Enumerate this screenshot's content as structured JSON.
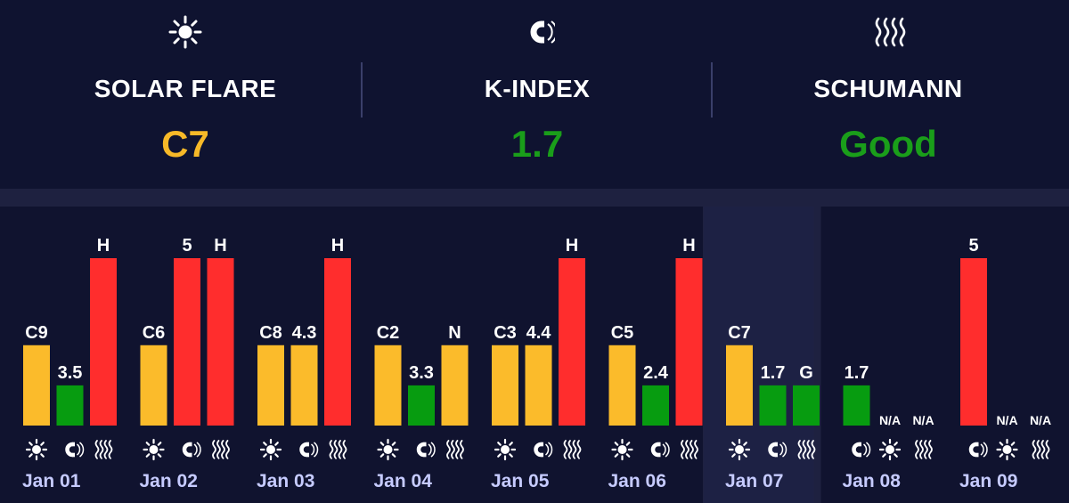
{
  "header": {
    "metrics": [
      {
        "icon": "sun-icon",
        "label": "SOLAR FLARE",
        "value": "C7",
        "color": "#f7b928"
      },
      {
        "icon": "magnet-icon",
        "label": "K-INDEX",
        "value": "1.7",
        "color": "#1a9e1a"
      },
      {
        "icon": "waves-icon",
        "label": "SCHUMANN",
        "value": "Good",
        "color": "#1a9e1a"
      }
    ]
  },
  "colors": {
    "yellow": "#fbbb2b",
    "green": "#079c10",
    "red": "#ff2d2d",
    "panel": "#10132f",
    "highlight": "#1d2144",
    "date": "#c6cbff"
  },
  "chart_data": {
    "type": "bar",
    "series": [
      {
        "key": "solar",
        "icon": "sun-icon"
      },
      {
        "key": "kindex",
        "icon": "magnet-icon"
      },
      {
        "key": "schumann",
        "icon": "waves-icon"
      }
    ],
    "days": [
      {
        "date": "Jan 01",
        "bars": [
          {
            "label": "C9",
            "level": 0.48,
            "color": "yellow"
          },
          {
            "label": "3.5",
            "level": 0.24,
            "color": "green"
          },
          {
            "label": "H",
            "level": 1.0,
            "color": "red"
          }
        ]
      },
      {
        "date": "Jan 02",
        "bars": [
          {
            "label": "C6",
            "level": 0.48,
            "color": "yellow"
          },
          {
            "label": "5",
            "level": 1.0,
            "color": "red"
          },
          {
            "label": "H",
            "level": 1.0,
            "color": "red"
          }
        ]
      },
      {
        "date": "Jan 03",
        "bars": [
          {
            "label": "C8",
            "level": 0.48,
            "color": "yellow"
          },
          {
            "label": "4.3",
            "level": 0.48,
            "color": "yellow"
          },
          {
            "label": "H",
            "level": 1.0,
            "color": "red"
          }
        ]
      },
      {
        "date": "Jan 04",
        "bars": [
          {
            "label": "C2",
            "level": 0.48,
            "color": "yellow"
          },
          {
            "label": "3.3",
            "level": 0.24,
            "color": "green"
          },
          {
            "label": "N",
            "level": 0.48,
            "color": "yellow"
          }
        ]
      },
      {
        "date": "Jan 05",
        "bars": [
          {
            "label": "C3",
            "level": 0.48,
            "color": "yellow"
          },
          {
            "label": "4.4",
            "level": 0.48,
            "color": "yellow"
          },
          {
            "label": "H",
            "level": 1.0,
            "color": "red"
          }
        ]
      },
      {
        "date": "Jan 06",
        "bars": [
          {
            "label": "C5",
            "level": 0.48,
            "color": "yellow"
          },
          {
            "label": "2.4",
            "level": 0.24,
            "color": "green"
          },
          {
            "label": "H",
            "level": 1.0,
            "color": "red"
          }
        ]
      },
      {
        "date": "Jan 07",
        "highlight": true,
        "bars": [
          {
            "label": "C7",
            "level": 0.48,
            "color": "yellow"
          },
          {
            "label": "1.7",
            "level": 0.24,
            "color": "green"
          },
          {
            "label": "G",
            "level": 0.24,
            "color": "green"
          }
        ]
      },
      {
        "date": "Jan 08",
        "order": [
          "magnet-icon",
          "sun-icon",
          "waves-icon"
        ],
        "bars": [
          {
            "label": "1.7",
            "level": 0.24,
            "color": "green"
          },
          {
            "label": "N/A",
            "level": 0,
            "color": "none"
          },
          {
            "label": "N/A",
            "level": 0,
            "color": "none"
          }
        ]
      },
      {
        "date": "Jan 09",
        "order": [
          "magnet-icon",
          "sun-icon",
          "waves-icon"
        ],
        "bars": [
          {
            "label": "5",
            "level": 1.0,
            "color": "red"
          },
          {
            "label": "N/A",
            "level": 0,
            "color": "none"
          },
          {
            "label": "N/A",
            "level": 0,
            "color": "none"
          }
        ]
      }
    ]
  }
}
